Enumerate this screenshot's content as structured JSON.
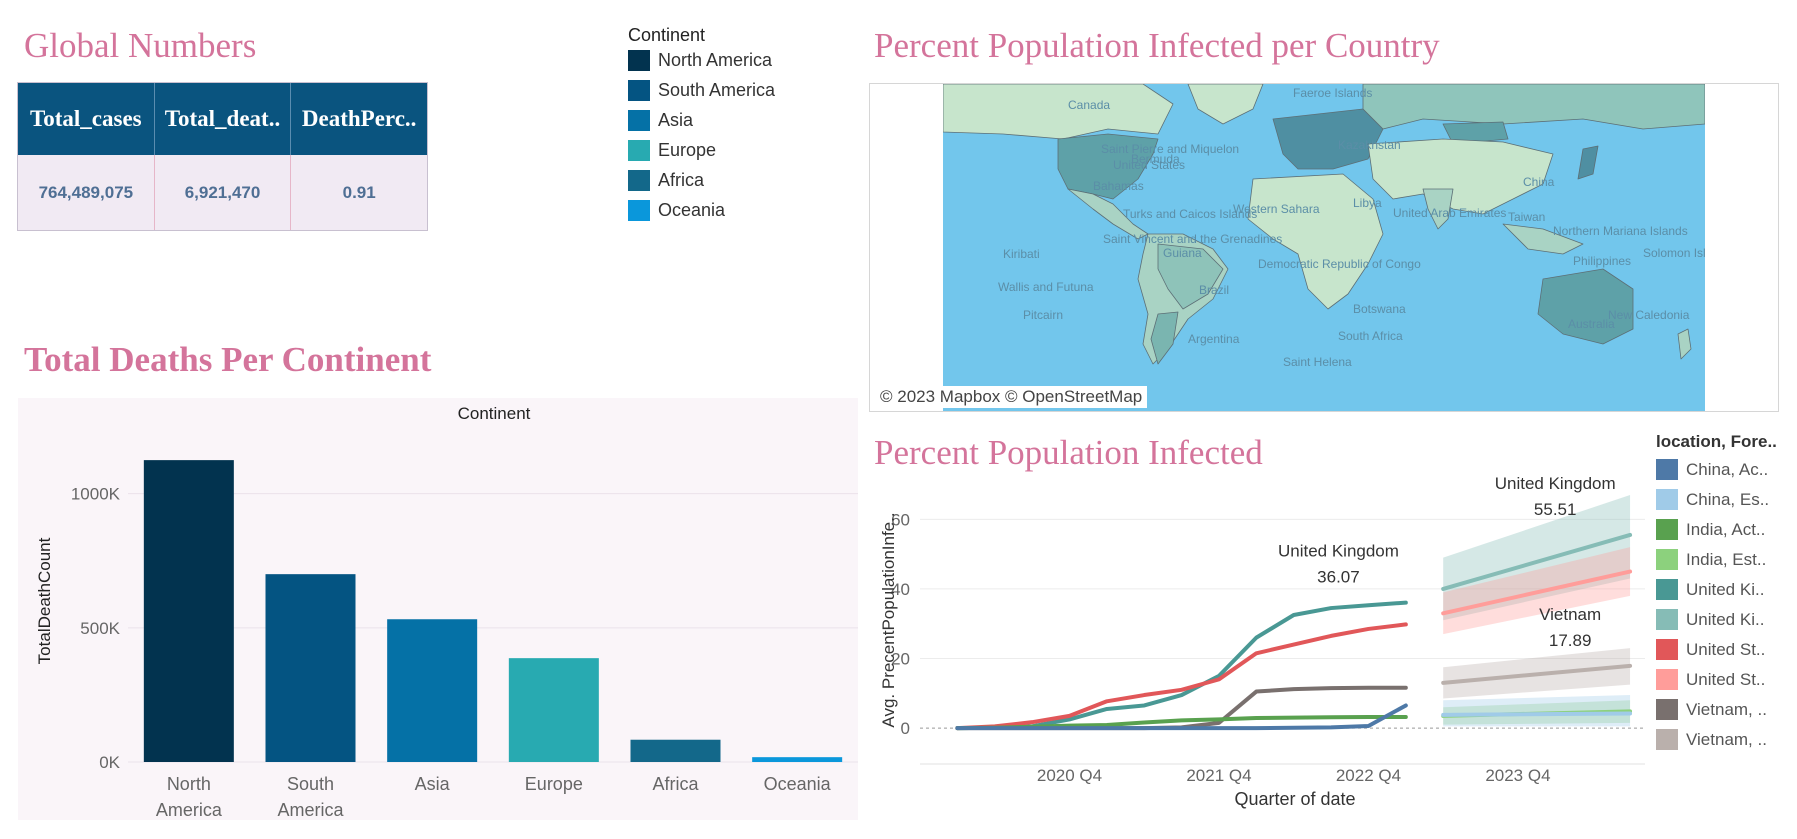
{
  "global": {
    "title": "Global Numbers",
    "headers": [
      "Total_cases",
      "Total_deat..",
      "DeathPerc.."
    ],
    "values": [
      "764,489,075",
      "6,921,470",
      "0.91"
    ]
  },
  "continent_legend": {
    "title": "Continent",
    "items": [
      {
        "label": "North America",
        "color": "#02334f"
      },
      {
        "label": "South America",
        "color": "#045482"
      },
      {
        "label": "Asia",
        "color": "#0571a6"
      },
      {
        "label": "Europe",
        "color": "#28aab1"
      },
      {
        "label": "Africa",
        "color": "#13688a"
      },
      {
        "label": "Oceania",
        "color": "#0a97db"
      }
    ]
  },
  "map": {
    "title": "Percent Population Infected per Country",
    "credit": "© 2023 Mapbox © OpenStreetMap",
    "labels": [
      "Canada",
      "Faeroe Islands",
      "Kazakhstan",
      "China",
      "United States",
      "Bermuda",
      "Saint Pierre and Miquelon",
      "Western Sahara",
      "Libya",
      "United Arab Emirates",
      "Taiwan",
      "Northern Mariana Islands",
      "Marshall Isla..",
      "Kiribati",
      "Saint Vincent and the Grenadines",
      "Guiana",
      "Democratic Republic of Congo",
      "Wallis and Futuna",
      "Pitcairn",
      "Brazil",
      "Botswana",
      "South Africa",
      "Argentina",
      "Saint Helena",
      "Australia",
      "New Caledonia",
      "Bahamas",
      "Turks and Caicos Islands",
      "Philippines",
      "Solomon Islands"
    ]
  },
  "bar_title": "Total Deaths Per Continent",
  "line_title": "Percent Population Infected",
  "charts": {
    "bar": {
      "type": "bar",
      "header": "Continent",
      "ylabel": "TotalDeathCount",
      "categories": [
        [
          "North",
          "America"
        ],
        [
          "South",
          "America"
        ],
        [
          "Asia"
        ],
        [
          "Europe"
        ],
        [
          "Africa"
        ],
        [
          "Oceania"
        ]
      ],
      "values": [
        1125000,
        700000,
        532000,
        387000,
        83000,
        18000
      ],
      "colors": [
        "#02334f",
        "#045482",
        "#0571a6",
        "#28aab1",
        "#13688a",
        "#0a97db"
      ],
      "ylim": [
        0,
        1200000
      ],
      "yticks": [
        0,
        500000,
        1000000
      ],
      "ytick_labels": [
        "0K",
        "500K",
        "1000K"
      ],
      "grid": true
    },
    "line": {
      "type": "line",
      "ylabel": "Avg. PrecentPopulationInfe..",
      "xlabel": "Quarter of date",
      "xticks": [
        2020.75,
        2021.75,
        2022.75,
        2023.75
      ],
      "xtick_labels": [
        "2020 Q4",
        "2021 Q4",
        "2022 Q4",
        "2023 Q4"
      ],
      "xlim": [
        2019.75,
        2024.6
      ],
      "ylim": [
        -4,
        67
      ],
      "yticks": [
        0,
        20,
        40,
        60
      ],
      "grid": true,
      "legend_title": "location, Fore..",
      "legend": [
        {
          "label": "China, Ac..",
          "color": "#4e79a7"
        },
        {
          "label": "China, Es..",
          "color": "#a0cbe8"
        },
        {
          "label": "India, Act..",
          "color": "#59a14f"
        },
        {
          "label": "India, Est..",
          "color": "#8cd17d"
        },
        {
          "label": "United Ki..",
          "color": "#499894"
        },
        {
          "label": "United Ki..",
          "color": "#86bcb6"
        },
        {
          "label": "United St..",
          "color": "#e15759"
        },
        {
          "label": "United St..",
          "color": "#ff9d9a"
        },
        {
          "label": "Vietnam, ..",
          "color": "#79706e"
        },
        {
          "label": "Vietnam, ..",
          "color": "#bab0ac"
        }
      ],
      "actual": [
        {
          "name": "United Kingdom",
          "color": "#499894",
          "x": [
            2020.0,
            2020.25,
            2020.5,
            2020.75,
            2021.0,
            2021.25,
            2021.5,
            2021.75,
            2022.0,
            2022.25,
            2022.5,
            2022.75,
            2023.0
          ],
          "y": [
            0,
            0.1,
            0.5,
            2.5,
            5.5,
            6.5,
            9.5,
            15,
            26,
            32.5,
            34.5,
            35.3,
            36.07
          ]
        },
        {
          "name": "United States",
          "color": "#e15759",
          "x": [
            2020.0,
            2020.25,
            2020.5,
            2020.75,
            2021.0,
            2021.25,
            2021.5,
            2021.75,
            2022.0,
            2022.25,
            2022.5,
            2022.75,
            2023.0
          ],
          "y": [
            0,
            0.5,
            1.7,
            3.5,
            7.7,
            9.5,
            11,
            14,
            21.5,
            24,
            26.5,
            28.5,
            29.8
          ]
        },
        {
          "name": "Vietnam",
          "color": "#79706e",
          "x": [
            2020.0,
            2020.25,
            2020.5,
            2020.75,
            2021.0,
            2021.25,
            2021.5,
            2021.75,
            2022.0,
            2022.25,
            2022.5,
            2022.75,
            2023.0
          ],
          "y": [
            0,
            0,
            0,
            0,
            0,
            0,
            0.2,
            1.5,
            10.5,
            11.2,
            11.5,
            11.6,
            11.6
          ]
        },
        {
          "name": "India",
          "color": "#59a14f",
          "x": [
            2020.0,
            2020.25,
            2020.5,
            2020.75,
            2021.0,
            2021.25,
            2021.5,
            2021.75,
            2022.0,
            2022.25,
            2022.5,
            2022.75,
            2023.0
          ],
          "y": [
            0,
            0.1,
            0.4,
            0.7,
            0.9,
            1.6,
            2.2,
            2.5,
            2.9,
            3.0,
            3.1,
            3.2,
            3.2
          ]
        },
        {
          "name": "China",
          "color": "#4e79a7",
          "x": [
            2020.0,
            2020.25,
            2020.5,
            2020.75,
            2021.0,
            2021.25,
            2021.5,
            2021.75,
            2022.0,
            2022.25,
            2022.5,
            2022.75,
            2023.0
          ],
          "y": [
            0,
            0,
            0,
            0,
            0,
            0,
            0,
            0,
            0,
            0.1,
            0.2,
            0.6,
            6.5
          ]
        }
      ],
      "forecast": [
        {
          "name": "United Kingdom",
          "color": "#86bcb6",
          "x": [
            2023.25,
            2024.5
          ],
          "y": [
            40,
            55.51
          ],
          "lower": [
            31,
            43
          ],
          "upper": [
            49,
            67
          ]
        },
        {
          "name": "United States",
          "color": "#ff9d9a",
          "x": [
            2023.25,
            2024.5
          ],
          "y": [
            33,
            45
          ],
          "lower": [
            27,
            38
          ],
          "upper": [
            39,
            52
          ]
        },
        {
          "name": "Vietnam",
          "color": "#bab0ac",
          "x": [
            2023.25,
            2024.5
          ],
          "y": [
            13,
            17.89
          ],
          "lower": [
            8.5,
            12.5
          ],
          "upper": [
            17.5,
            23
          ]
        },
        {
          "name": "India",
          "color": "#8cd17d",
          "x": [
            2023.25,
            2024.5
          ],
          "y": [
            3.5,
            4.8
          ],
          "lower": [
            1,
            1.5
          ],
          "upper": [
            6,
            8
          ]
        },
        {
          "name": "China",
          "color": "#a0cbe8",
          "x": [
            2023.25,
            2024.5
          ],
          "y": [
            3.8,
            4.2
          ],
          "lower": [
            0.5,
            0.5
          ],
          "upper": [
            8,
            9.5
          ]
        }
      ],
      "annotations": [
        {
          "name": "United Kingdom",
          "value": "36.07",
          "x": 2022.75,
          "y": 36.07
        },
        {
          "name": "United Kingdom",
          "value": "55.51",
          "x": 2024.2,
          "y": 55.51
        },
        {
          "name": "Vietnam",
          "value": "17.89",
          "x": 2024.3,
          "y": 17.89
        }
      ]
    }
  }
}
